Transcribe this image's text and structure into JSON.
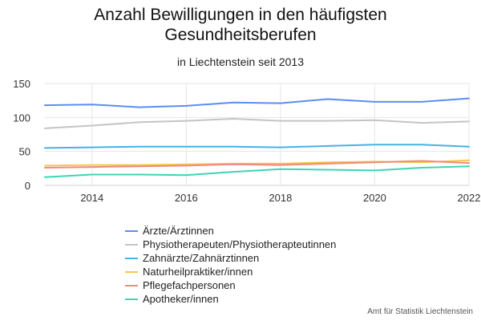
{
  "chart_data": {
    "type": "line",
    "title_lines": [
      "Anzahl Bewilligungen in den häufigsten",
      "Gesundheitsberufen"
    ],
    "subtitle": "in Liechtenstein seit 2013",
    "source": "Amt für Statistik Liechtenstein",
    "x": [
      2013,
      2014,
      2015,
      2016,
      2017,
      2018,
      2019,
      2020,
      2021,
      2022
    ],
    "x_ticks": [
      "2014",
      "2016",
      "2018",
      "2020",
      "2022"
    ],
    "y_ticks": [
      "0",
      "50",
      "100",
      "150"
    ],
    "ylim": [
      0,
      150
    ],
    "grid": true,
    "legend_position": "bottom",
    "series": [
      {
        "name": "Ärzte/Ärztinnen",
        "color": "#5b8ff0",
        "values": [
          118,
          119,
          115,
          117,
          122,
          121,
          127,
          123,
          123,
          128
        ]
      },
      {
        "name": "Physiotherapeuten/Physiotherapteutinnen",
        "color": "#c4c4c4",
        "values": [
          84,
          88,
          93,
          95,
          98,
          95,
          95,
          96,
          92,
          94
        ]
      },
      {
        "name": "Zahnärzte/Zahnärztinnen",
        "color": "#45b3e4",
        "values": [
          55,
          56,
          57,
          57,
          57,
          56,
          58,
          60,
          60,
          57
        ]
      },
      {
        "name": "Naturheilpraktiker/innen",
        "color": "#f5c84a",
        "values": [
          29,
          30,
          30,
          31,
          32,
          32,
          34,
          35,
          34,
          37
        ]
      },
      {
        "name": "Pflegefachpersonen",
        "color": "#f08a7e",
        "values": [
          26,
          27,
          28,
          29,
          31,
          30,
          32,
          34,
          36,
          33
        ]
      },
      {
        "name": "Apotheker/innen",
        "color": "#3fd4b5",
        "values": [
          12,
          16,
          16,
          15,
          20,
          24,
          23,
          22,
          26,
          28
        ]
      }
    ]
  }
}
